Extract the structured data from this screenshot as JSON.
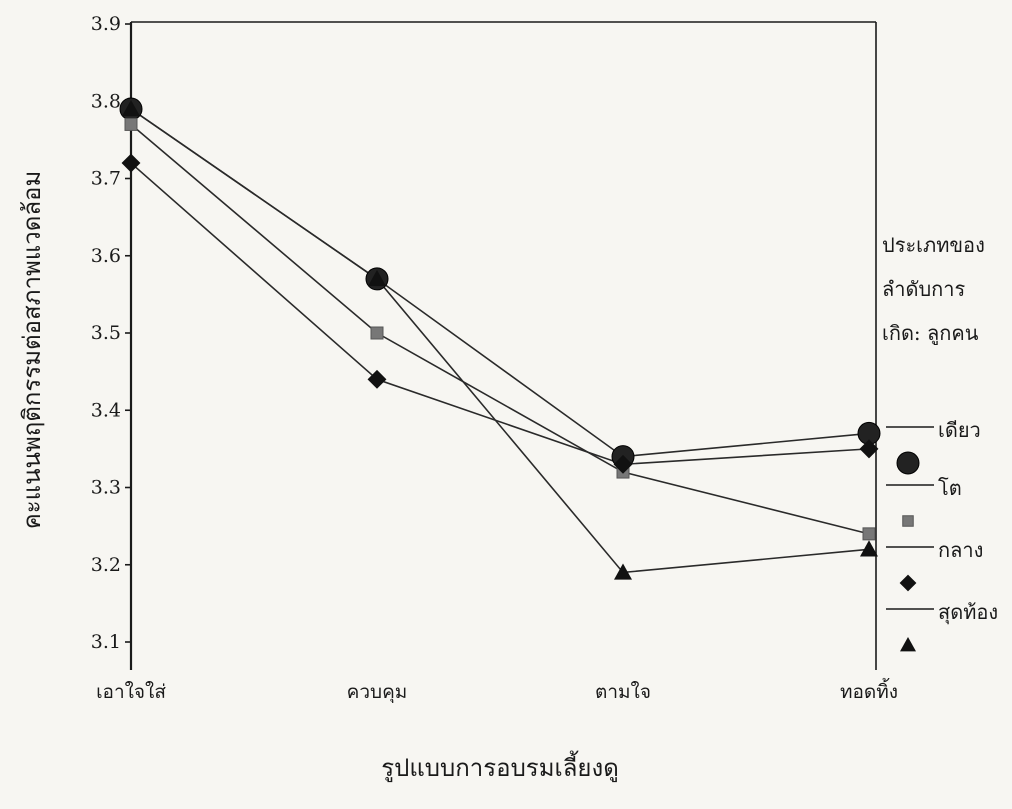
{
  "chart_data": {
    "type": "line",
    "title": "",
    "xlabel": "รูปแบบการอบรมเลี้ยงดู",
    "ylabel": "คะแนนพฤติกรรมต่อสภาพแวดล้อม",
    "categories": [
      "เอาใจใส่",
      "ควบคุม",
      "ตามใจ",
      "ทอดทิ้ง"
    ],
    "ylim": [
      3.1,
      3.9
    ],
    "yticks": [
      "3.1",
      "3.2",
      "3.3",
      "3.4",
      "3.5",
      "3.6",
      "3.7",
      "3.8",
      "3.9"
    ],
    "grid": false,
    "legend": {
      "title_lines": [
        "ประเภทของ",
        "ลำดับการ",
        "เกิด: ลูกคน"
      ],
      "placement": "right"
    },
    "series": [
      {
        "name": "เดียว",
        "marker": "circle",
        "values": [
          3.79,
          3.57,
          3.34,
          3.37
        ]
      },
      {
        "name": "โต",
        "marker": "square",
        "values": [
          3.77,
          3.5,
          3.32,
          3.24
        ]
      },
      {
        "name": "กลาง",
        "marker": "diamond",
        "values": [
          3.72,
          3.44,
          3.33,
          3.35
        ]
      },
      {
        "name": "สุดท้อง",
        "marker": "triangle",
        "values": [
          3.79,
          3.57,
          3.19,
          3.22
        ]
      }
    ]
  }
}
